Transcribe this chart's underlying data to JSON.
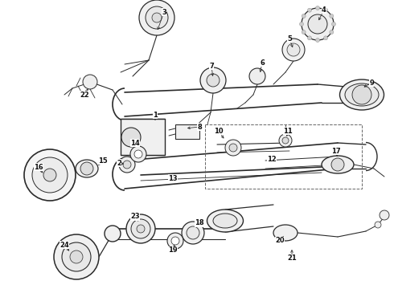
{
  "bg_color": "#ffffff",
  "fig_width": 4.9,
  "fig_height": 3.6,
  "dpi": 100,
  "line_color": "#2a2a2a",
  "lw_main": 0.9,
  "lw_thin": 0.6,
  "label_fs": 6.0,
  "col_tube": "#1a1a1a",
  "col_part": "#333333",
  "col_dash": "#555555"
}
